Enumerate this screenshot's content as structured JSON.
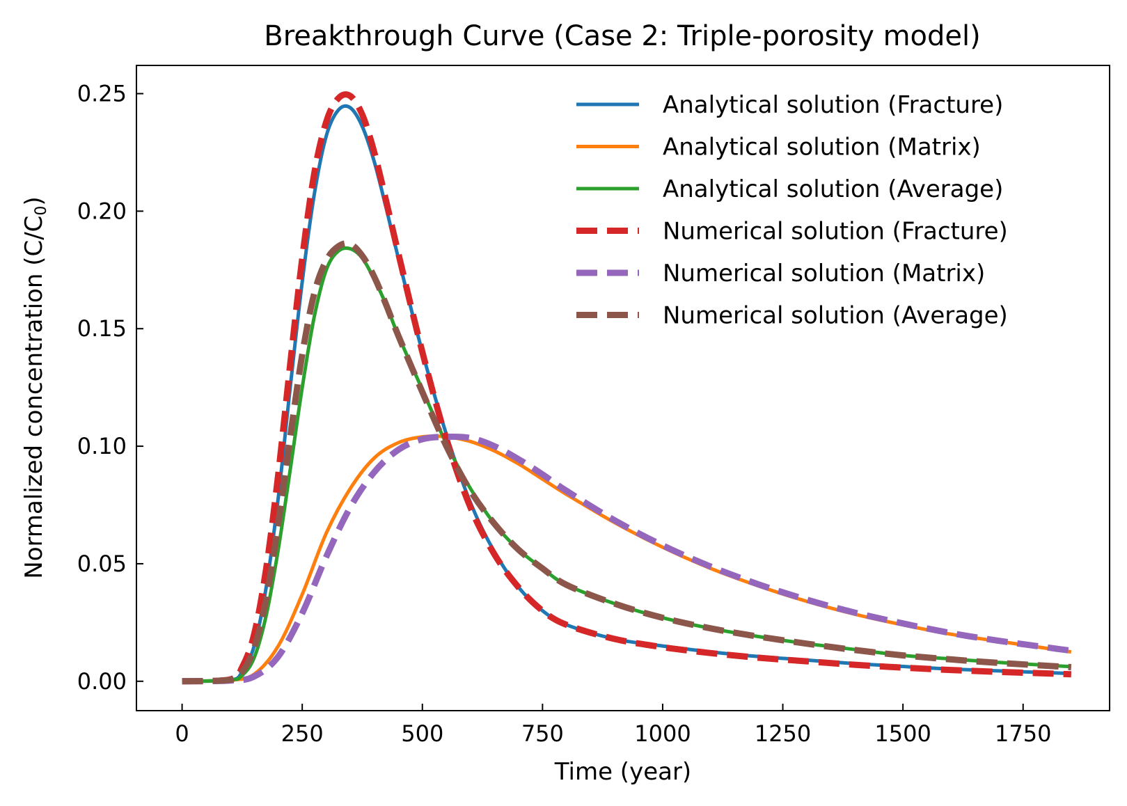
{
  "chart_data": {
    "type": "line",
    "title": "Breakthrough Curve (Case 2: Triple-porosity model)",
    "xlabel": "Time (year)",
    "ylabel_main": "Normalized concentration (C/C",
    "ylabel_sub": "0",
    "ylabel_close": ")",
    "xlim": [
      -95,
      1930
    ],
    "ylim": [
      -0.0125,
      0.262
    ],
    "xticks": [
      0,
      250,
      500,
      750,
      1000,
      1250,
      1500,
      1750
    ],
    "xtick_labels": [
      "0",
      "250",
      "500",
      "750",
      "1000",
      "1250",
      "1500",
      "1750"
    ],
    "yticks": [
      0,
      0.05,
      0.1,
      0.15,
      0.2,
      0.25
    ],
    "ytick_labels": [
      "0.00",
      "0.05",
      "0.10",
      "0.15",
      "0.20",
      "0.25"
    ],
    "grid": false,
    "legend_position": "top-right",
    "series": [
      {
        "name": "Analytical solution (Fracture)",
        "color": "#1f77b4",
        "style": "solid",
        "x": [
          0,
          100,
          125,
          150,
          175,
          200,
          225,
          250,
          275,
          300,
          325,
          350,
          375,
          400,
          425,
          450,
          500,
          550,
          600,
          650,
          700,
          750,
          800,
          900,
          1000,
          1100,
          1200,
          1300,
          1400,
          1500,
          1600,
          1700,
          1850
        ],
        "y": [
          0,
          0.0005,
          0.004,
          0.015,
          0.04,
          0.078,
          0.125,
          0.17,
          0.207,
          0.232,
          0.243,
          0.244,
          0.236,
          0.221,
          0.201,
          0.18,
          0.14,
          0.105,
          0.076,
          0.055,
          0.04,
          0.03,
          0.024,
          0.018,
          0.015,
          0.0125,
          0.0105,
          0.009,
          0.0075,
          0.0063,
          0.0052,
          0.0044,
          0.0033
        ]
      },
      {
        "name": "Analytical solution (Matrix)",
        "color": "#ff7f0e",
        "style": "solid",
        "x": [
          0,
          100,
          150,
          200,
          250,
          300,
          350,
          400,
          450,
          500,
          550,
          600,
          650,
          700,
          750,
          800,
          900,
          1000,
          1100,
          1200,
          1300,
          1400,
          1500,
          1600,
          1700,
          1850
        ],
        "y": [
          0,
          0.0005,
          0.003,
          0.015,
          0.037,
          0.063,
          0.082,
          0.095,
          0.1015,
          0.104,
          0.104,
          0.102,
          0.098,
          0.0925,
          0.086,
          0.0795,
          0.0675,
          0.057,
          0.048,
          0.0405,
          0.034,
          0.0285,
          0.024,
          0.02,
          0.017,
          0.0125
        ]
      },
      {
        "name": "Analytical solution (Average)",
        "color": "#2ca02c",
        "style": "solid",
        "x": [
          0,
          100,
          125,
          150,
          175,
          200,
          225,
          250,
          275,
          300,
          325,
          350,
          375,
          400,
          425,
          450,
          500,
          550,
          600,
          650,
          700,
          750,
          800,
          900,
          1000,
          1100,
          1200,
          1300,
          1400,
          1500,
          1600,
          1700,
          1850
        ],
        "y": [
          0,
          0.0005,
          0.0025,
          0.01,
          0.028,
          0.056,
          0.09,
          0.125,
          0.155,
          0.175,
          0.183,
          0.184,
          0.18,
          0.171,
          0.16,
          0.147,
          0.124,
          0.101,
          0.082,
          0.067,
          0.056,
          0.048,
          0.041,
          0.033,
          0.027,
          0.0225,
          0.019,
          0.016,
          0.0135,
          0.011,
          0.0095,
          0.008,
          0.0062
        ]
      },
      {
        "name": "Numerical solution (Fracture)",
        "color": "#d62728",
        "style": "dashed",
        "x": [
          0,
          100,
          125,
          150,
          175,
          200,
          225,
          250,
          275,
          300,
          325,
          350,
          375,
          400,
          425,
          450,
          500,
          550,
          600,
          650,
          700,
          750,
          800,
          900,
          1000,
          1100,
          1200,
          1300,
          1400,
          1500,
          1600,
          1700,
          1850
        ],
        "y": [
          0,
          0.0008,
          0.006,
          0.02,
          0.048,
          0.088,
          0.135,
          0.18,
          0.216,
          0.238,
          0.248,
          0.249,
          0.241,
          0.225,
          0.204,
          0.182,
          0.14,
          0.103,
          0.074,
          0.054,
          0.04,
          0.03,
          0.024,
          0.018,
          0.0145,
          0.012,
          0.01,
          0.0085,
          0.007,
          0.0058,
          0.0048,
          0.004,
          0.003
        ]
      },
      {
        "name": "Numerical solution (Matrix)",
        "color": "#9467bd",
        "style": "dashed",
        "x": [
          0,
          100,
          150,
          200,
          250,
          300,
          350,
          400,
          450,
          500,
          550,
          600,
          650,
          700,
          750,
          800,
          900,
          1000,
          1100,
          1200,
          1300,
          1400,
          1500,
          1600,
          1700,
          1850
        ],
        "y": [
          0,
          0.0003,
          0.002,
          0.0105,
          0.029,
          0.053,
          0.074,
          0.089,
          0.0985,
          0.103,
          0.104,
          0.1035,
          0.1,
          0.0945,
          0.088,
          0.081,
          0.0685,
          0.0578,
          0.0488,
          0.0412,
          0.0347,
          0.0292,
          0.0246,
          0.0205,
          0.0172,
          0.013
        ]
      },
      {
        "name": "Numerical solution (Average)",
        "color": "#8c564b",
        "style": "dashed",
        "x": [
          0,
          100,
          125,
          150,
          175,
          200,
          225,
          250,
          275,
          300,
          325,
          350,
          375,
          400,
          425,
          450,
          500,
          550,
          600,
          650,
          700,
          750,
          800,
          900,
          1000,
          1100,
          1200,
          1300,
          1400,
          1500,
          1600,
          1700,
          1850
        ],
        "y": [
          0,
          0.0006,
          0.004,
          0.014,
          0.035,
          0.067,
          0.104,
          0.139,
          0.165,
          0.179,
          0.185,
          0.186,
          0.181,
          0.172,
          0.16,
          0.147,
          0.123,
          0.1,
          0.081,
          0.067,
          0.056,
          0.048,
          0.041,
          0.033,
          0.027,
          0.0225,
          0.019,
          0.016,
          0.0133,
          0.011,
          0.0093,
          0.0078,
          0.006
        ]
      }
    ]
  }
}
